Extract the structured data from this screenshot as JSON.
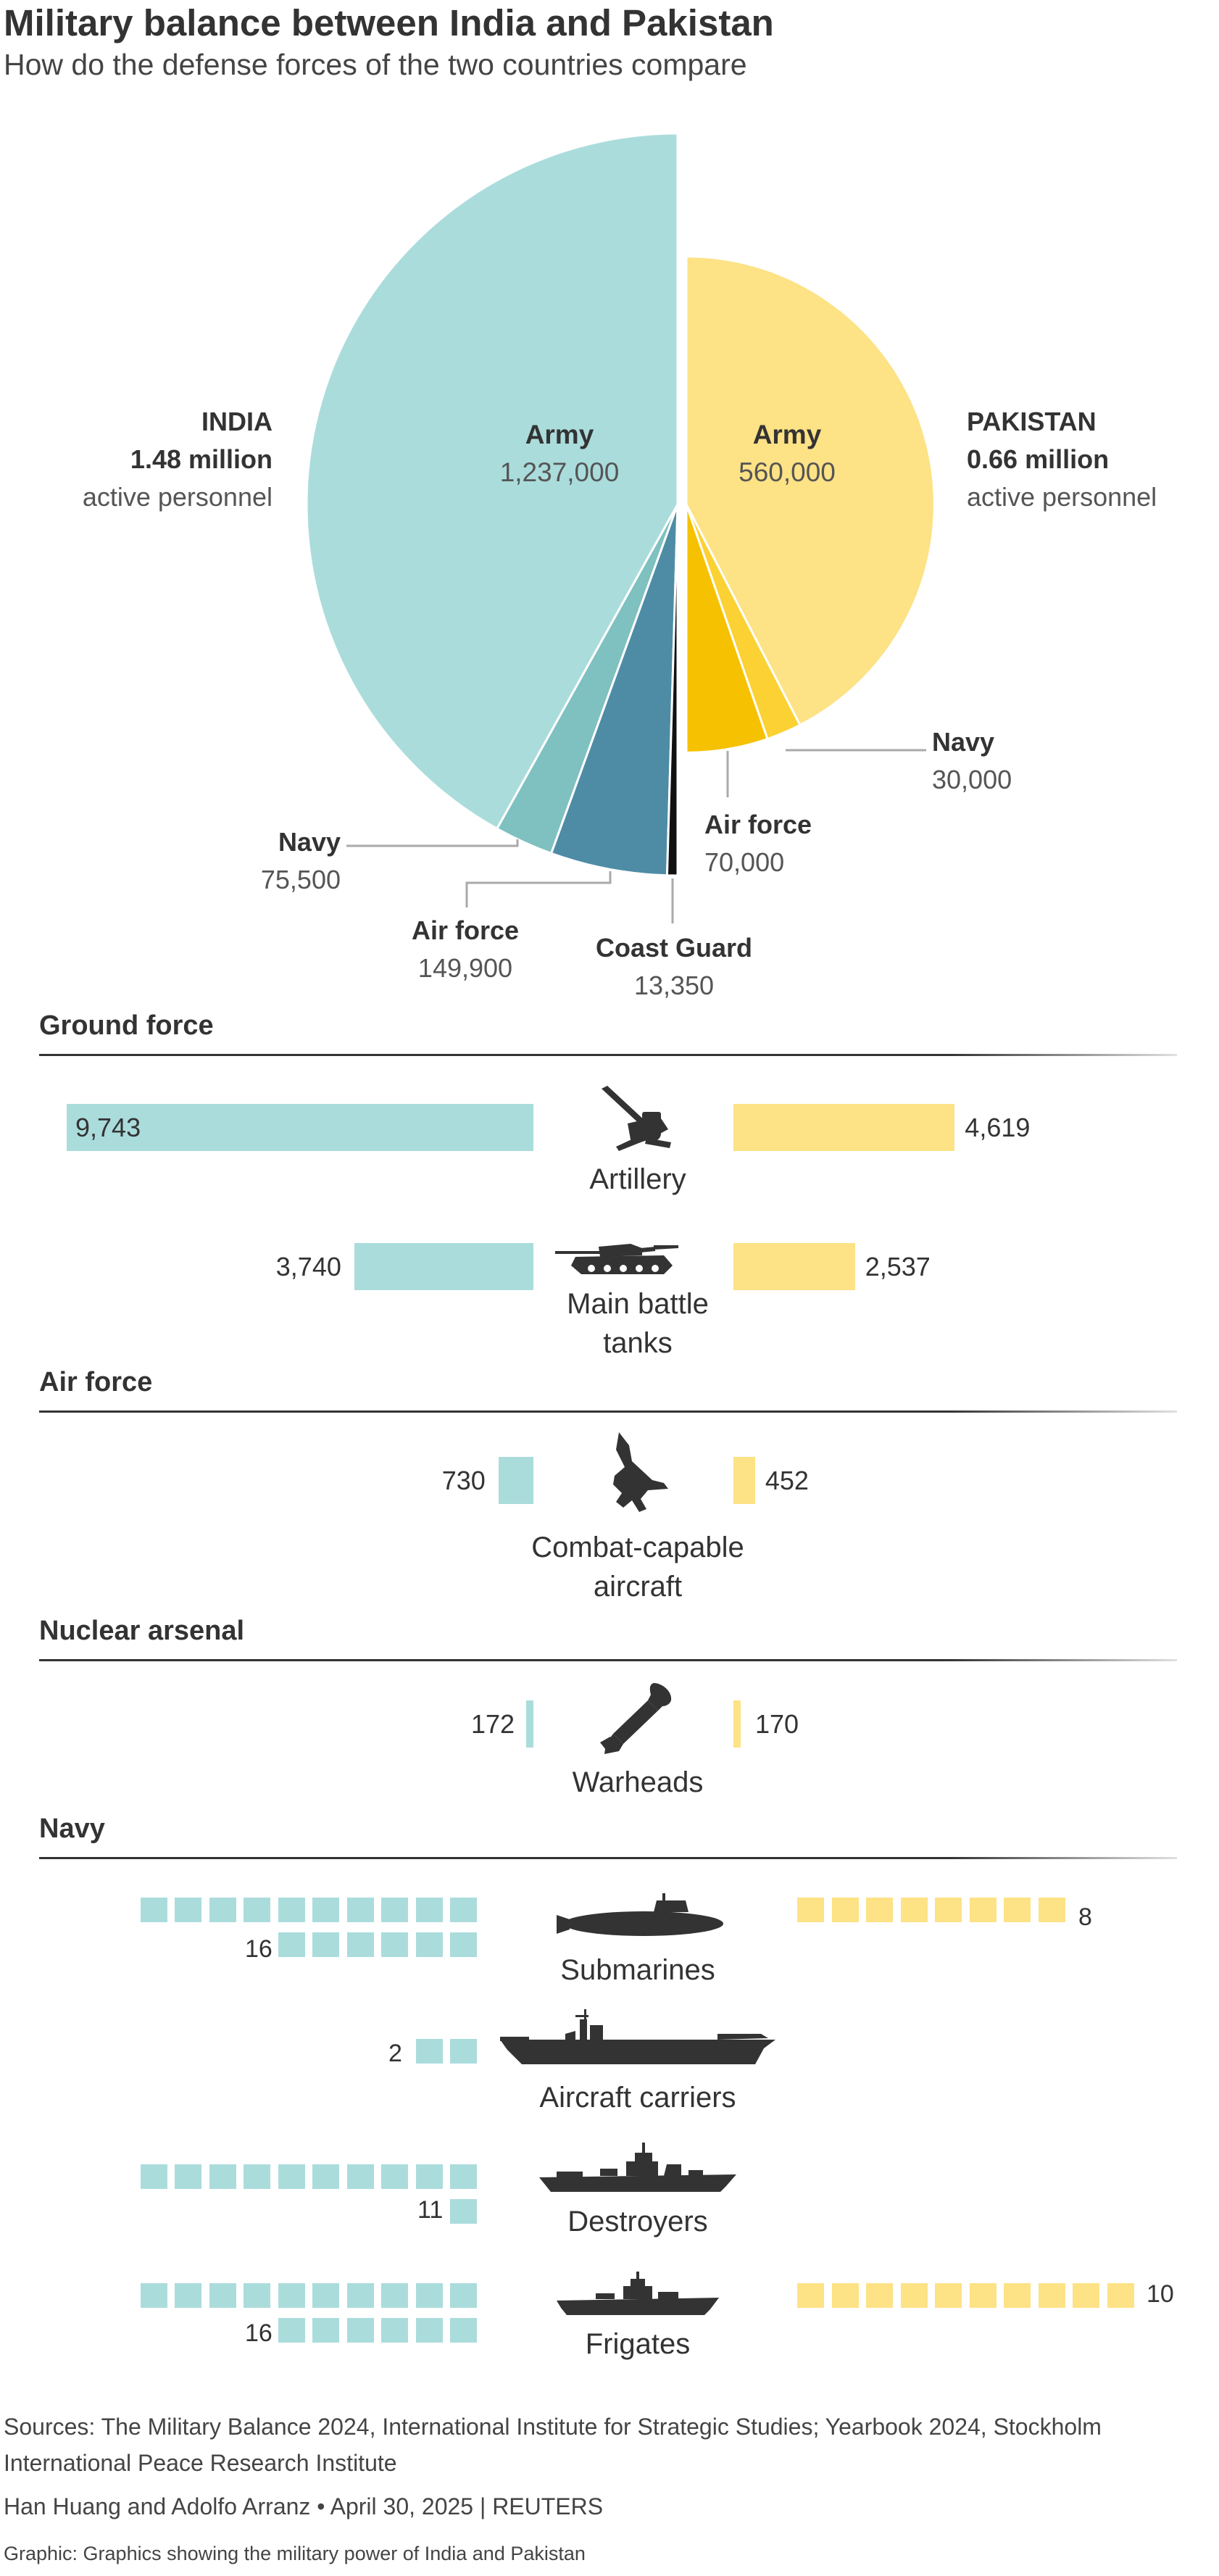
{
  "title": "Military balance between India and Pakistan",
  "subtitle": "How do the defense forces of the two countries compare",
  "colors": {
    "india": "#abdcdc",
    "india_navy": "#7fc0c0",
    "india_airforce": "#4e8ca6",
    "india_coastguard": "#111111",
    "pakistan": "#fde286",
    "pakistan_navy": "#fbd133",
    "pakistan_airforce": "#f5c100"
  },
  "india": {
    "name": "INDIA",
    "total": "1.48 million",
    "total_note": "active personnel"
  },
  "pakistan": {
    "name": "PAKISTAN",
    "total": "0.66 million",
    "total_note": "active personnel"
  },
  "pie_labels": {
    "india_army": "Army",
    "india_army_val": "1,237,000",
    "india_navy": "Navy",
    "india_navy_val": "75,500",
    "india_airforce": "Air force",
    "india_airforce_val": "149,900",
    "india_coastguard": "Coast Guard",
    "india_coastguard_val": "13,350",
    "pak_army": "Army",
    "pak_army_val": "560,000",
    "pak_navy": "Navy",
    "pak_navy_val": "30,000",
    "pak_airforce": "Air force",
    "pak_airforce_val": "70,000"
  },
  "chart_data": [
    {
      "type": "pie",
      "title": "",
      "series": [
        {
          "name": "INDIA",
          "categories": [
            "Army",
            "Navy",
            "Air force",
            "Coast Guard"
          ],
          "values": [
            1237000,
            75500,
            149900,
            13350
          ]
        },
        {
          "name": "PAKISTAN",
          "categories": [
            "Army",
            "Air force",
            "Navy"
          ],
          "values": [
            560000,
            70000,
            30000
          ]
        }
      ]
    },
    {
      "type": "bar",
      "title": "Ground force",
      "categories": [
        "Artillery",
        "Main battle tanks"
      ],
      "series": [
        {
          "name": "INDIA",
          "values": [
            9743,
            3740
          ]
        },
        {
          "name": "PAKISTAN",
          "values": [
            4619,
            2537
          ]
        }
      ]
    },
    {
      "type": "bar",
      "title": "Air force",
      "categories": [
        "Combat-capable aircraft"
      ],
      "series": [
        {
          "name": "INDIA",
          "values": [
            730
          ]
        },
        {
          "name": "PAKISTAN",
          "values": [
            452
          ]
        }
      ]
    },
    {
      "type": "bar",
      "title": "Nuclear arsenal",
      "categories": [
        "Warheads"
      ],
      "series": [
        {
          "name": "INDIA",
          "values": [
            172
          ]
        },
        {
          "name": "PAKISTAN",
          "values": [
            170
          ]
        }
      ]
    },
    {
      "type": "table",
      "title": "Navy",
      "categories": [
        "Submarines",
        "Aircraft carriers",
        "Destroyers",
        "Frigates"
      ],
      "series": [
        {
          "name": "INDIA",
          "values": [
            16,
            2,
            11,
            16
          ]
        },
        {
          "name": "PAKISTAN",
          "values": [
            8,
            0,
            0,
            10
          ]
        }
      ]
    }
  ],
  "sections": {
    "ground": "Ground force",
    "air": "Air force",
    "nuclear": "Nuclear arsenal",
    "navy": "Navy"
  },
  "bars": {
    "artillery": {
      "label": "Artillery",
      "india": 9743,
      "pakistan": 4619,
      "india_text": "9,743",
      "pakistan_text": "4,619"
    },
    "tanks": {
      "label": "Main battle tanks",
      "label_line1": "Main battle",
      "label_line2": "tanks",
      "india": 3740,
      "pakistan": 2537,
      "india_text": "3,740",
      "pakistan_text": "2,537"
    },
    "aircraft": {
      "label_line1": "Combat-capable",
      "label_line2": "aircraft",
      "india": 730,
      "pakistan": 452,
      "india_text": "730",
      "pakistan_text": "452"
    },
    "warheads": {
      "label": "Warheads",
      "india": 172,
      "pakistan": 170,
      "india_text": "172",
      "pakistan_text": "170"
    }
  },
  "navy": {
    "submarines": {
      "label": "Submarines",
      "india": 16,
      "pakistan": 8,
      "india_text": "16",
      "pakistan_text": "8"
    },
    "carriers": {
      "label": "Aircraft carriers",
      "india": 2,
      "pakistan": 0,
      "india_text": "2"
    },
    "destroyers": {
      "label": "Destroyers",
      "india": 11,
      "pakistan": 0,
      "india_text": "11"
    },
    "frigates": {
      "label": "Frigates",
      "india": 16,
      "pakistan": 10,
      "india_text": "16",
      "pakistan_text": "10"
    }
  },
  "icons": {
    "artillery": "artillery-icon",
    "tank": "tank-icon",
    "jet": "fighter-jet-icon",
    "warhead": "warhead-icon",
    "submarine": "submarine-icon",
    "carrier": "aircraft-carrier-icon",
    "destroyer": "destroyer-icon",
    "frigate": "frigate-icon"
  },
  "footer": {
    "sources_line1": "Sources: The Military Balance 2024, International Institute for Strategic Studies; Yearbook 2024, Stockholm",
    "sources_line2": "International Peace Research Institute",
    "byline": "Han Huang and Adolfo Arranz • April 30, 2025 | REUTERS",
    "graphic_note": "Graphic: Graphics showing the military power of India and Pakistan"
  }
}
